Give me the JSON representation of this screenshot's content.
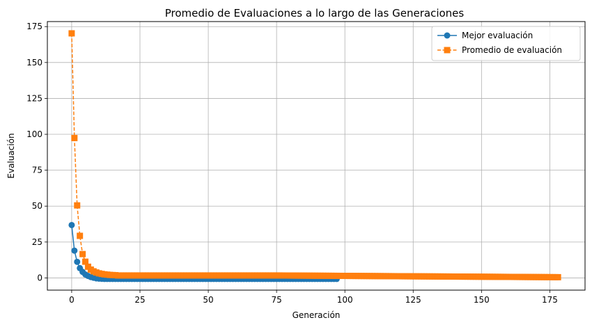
{
  "chart_data": {
    "type": "line",
    "title": "Promedio de Evaluaciones a lo largo de las Generaciones",
    "xlabel": "Generación",
    "ylabel": "Evaluación",
    "xlim": [
      -8.9,
      187.9
    ],
    "ylim": [
      -8.5,
      178.5
    ],
    "xticks": [
      0,
      25,
      50,
      75,
      100,
      125,
      150,
      175
    ],
    "yticks": [
      0,
      25,
      50,
      75,
      100,
      125,
      150,
      175
    ],
    "grid": true,
    "legend_position": "top-right",
    "n_generations": 179,
    "series": [
      {
        "name": "Mejor evaluación",
        "color": "#1f77b4",
        "linestyle": "solid",
        "marker": "circle",
        "head_values": [
          36.8,
          19.0,
          11.2,
          6.8,
          4.2,
          2.4,
          1.4,
          0.6,
          0.1,
          -0.3,
          -0.5,
          -0.6,
          -0.7
        ],
        "x_end": 97,
        "tail_value": -0.7
      },
      {
        "name": "Promedio de evaluación",
        "color": "#ff7f0e",
        "linestyle": "dashed",
        "marker": "square",
        "head_values": [
          170.3,
          97.4,
          50.5,
          29.3,
          16.6,
          11.3,
          7.8,
          5.8,
          4.6,
          3.8,
          3.2,
          2.8,
          2.5,
          2.3,
          2.1,
          2.0,
          1.9
        ],
        "tail_value": 1.7,
        "late_tail_value": 0.5
      }
    ]
  }
}
